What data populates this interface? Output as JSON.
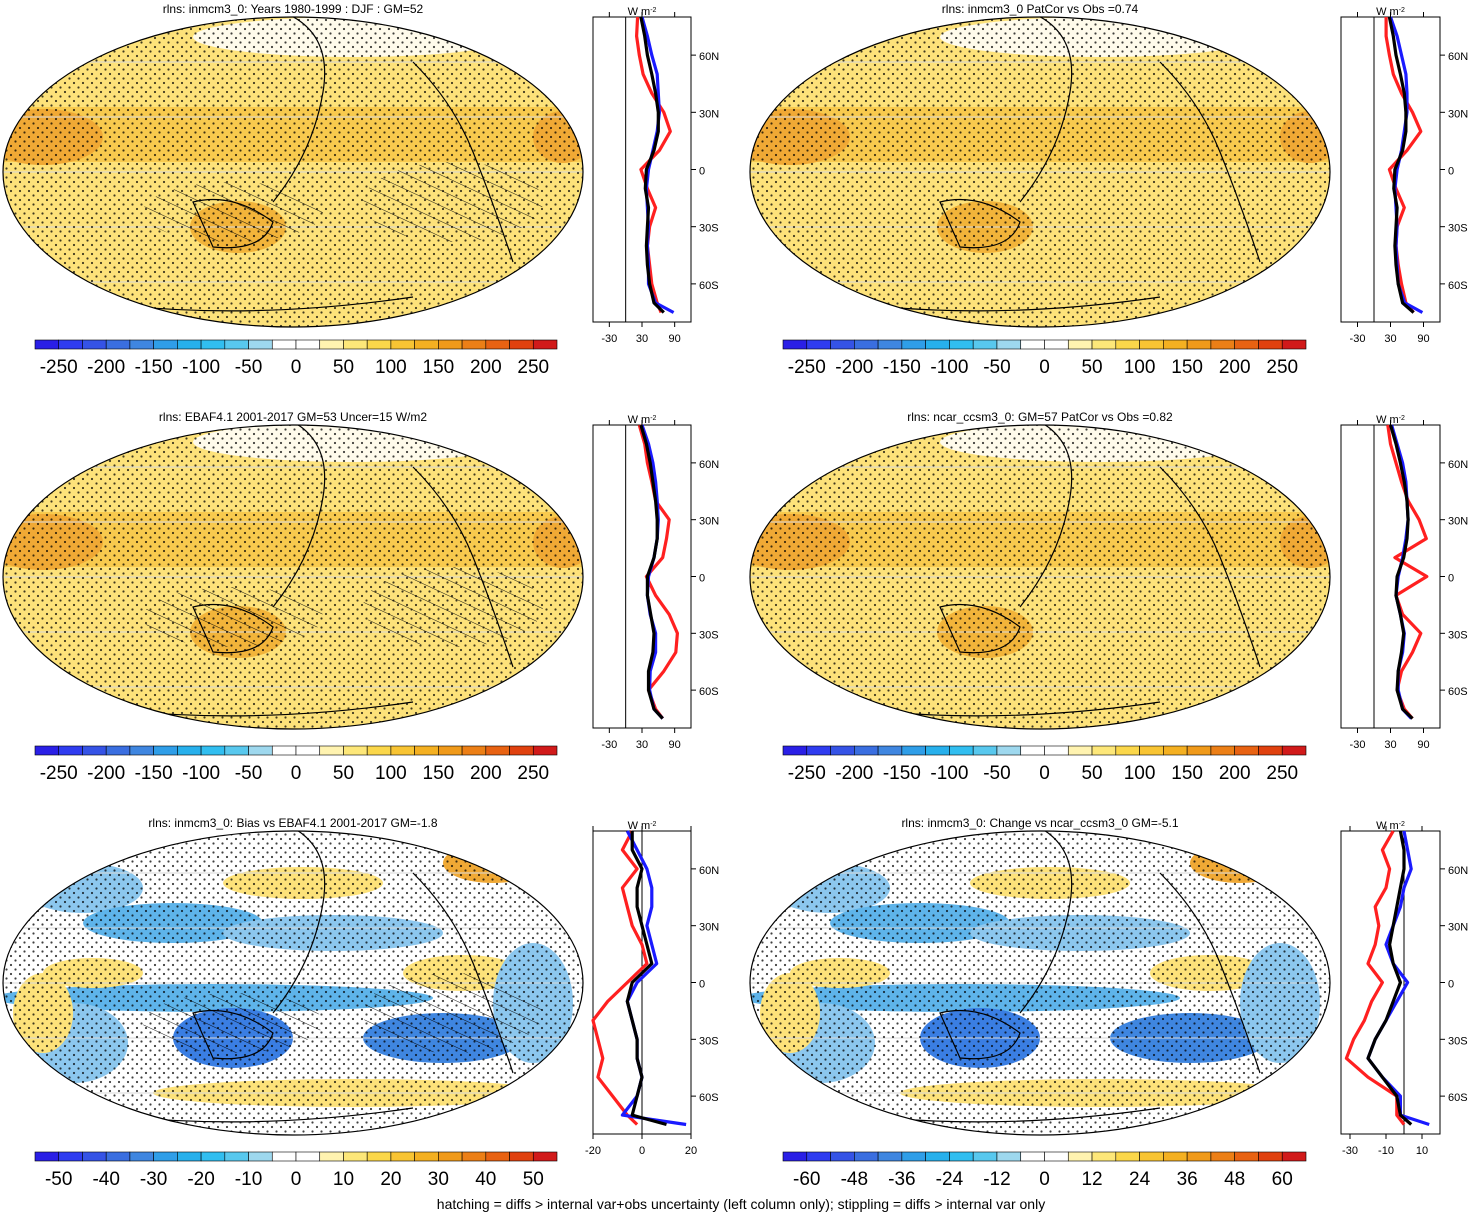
{
  "footer_note": "hatching = diffs > internal var+obs uncertainty (left column only); stippling = diffs > internal var only",
  "palette": {
    "blue_end": "#1a1aff",
    "mid_blue": "#2aa4ee",
    "white": "#ffffff",
    "yellow": "#fbd74a",
    "orange": "#f09a1a",
    "red_end": "#d11a1a",
    "line_red": "#ff2020",
    "line_blue": "#1a1aff",
    "line_black": "#000000"
  },
  "chart_data": [
    {
      "id": "p1",
      "type": "heatmap",
      "title": "rlns: inmcm3_0: Years 1980-1999 : DJF : GM=52",
      "colorbar_ticks": [
        "-250",
        "-200",
        "-150",
        "-100",
        "-50",
        "0",
        "50",
        "100",
        "150",
        "200",
        "250"
      ],
      "profile": {
        "unit": "W m",
        "unit_exp": "-2",
        "x_ticks": [
          "-30",
          "30",
          "90"
        ],
        "x_range": [
          -60,
          120
        ],
        "lat_labels": [
          "60N",
          "30N",
          "0",
          "30S",
          "60S"
        ],
        "series": [
          {
            "color": "red",
            "lat": [
              80,
              70,
              60,
              50,
              40,
              30,
              20,
              10,
              0,
              -10,
              -20,
              -30,
              -40,
              -50,
              -60,
              -70,
              -75
            ],
            "values": [
              22,
              20,
              25,
              32,
              48,
              70,
              82,
              62,
              28,
              40,
              55,
              44,
              40,
              44,
              48,
              58,
              65
            ]
          },
          {
            "color": "blue",
            "lat": [
              80,
              70,
              60,
              50,
              40,
              30,
              20,
              10,
              0,
              -10,
              -20,
              -30,
              -40,
              -50,
              -60,
              -70,
              -75
            ],
            "values": [
              30,
              40,
              48,
              58,
              60,
              62,
              58,
              50,
              42,
              38,
              40,
              42,
              40,
              42,
              42,
              55,
              88
            ]
          },
          {
            "color": "black",
            "lat": [
              80,
              70,
              60,
              50,
              40,
              30,
              20,
              10,
              0,
              -10,
              -20,
              -30,
              -40,
              -50,
              -60,
              -70,
              -75
            ],
            "values": [
              28,
              35,
              40,
              48,
              55,
              60,
              60,
              52,
              38,
              36,
              42,
              40,
              38,
              40,
              44,
              52,
              70
            ]
          }
        ]
      }
    },
    {
      "id": "p2",
      "type": "heatmap",
      "title": "rlns: inmcm3_0 PatCor vs Obs =0.74",
      "colorbar_ticks": [
        "-250",
        "-200",
        "-150",
        "-100",
        "-50",
        "0",
        "50",
        "100",
        "150",
        "200",
        "250"
      ],
      "profile": {
        "unit": "W m",
        "unit_exp": "-2",
        "x_ticks": [
          "-30",
          "30",
          "90"
        ],
        "x_range": [
          -60,
          120
        ],
        "lat_labels": [
          "60N",
          "30N",
          "0",
          "30S",
          "60S"
        ],
        "series": [
          {
            "color": "red",
            "lat": [
              80,
              70,
              60,
              50,
              40,
              30,
              20,
              10,
              0,
              -10,
              -20,
              -30,
              -40,
              -50,
              -60,
              -70,
              -75
            ],
            "values": [
              22,
              22,
              28,
              35,
              50,
              70,
              85,
              60,
              28,
              40,
              55,
              42,
              40,
              44,
              50,
              58,
              72
            ]
          },
          {
            "color": "blue",
            "lat": [
              80,
              70,
              60,
              50,
              40,
              30,
              20,
              10,
              0,
              -10,
              -20,
              -30,
              -40,
              -50,
              -60,
              -70,
              -75
            ],
            "values": [
              30,
              42,
              50,
              58,
              60,
              60,
              55,
              50,
              42,
              38,
              40,
              42,
              40,
              42,
              44,
              56,
              88
            ]
          },
          {
            "color": "black",
            "lat": [
              80,
              70,
              60,
              50,
              40,
              30,
              20,
              10,
              0,
              -10,
              -20,
              -30,
              -40,
              -50,
              -60,
              -70,
              -75
            ],
            "values": [
              28,
              35,
              40,
              48,
              55,
              58,
              58,
              52,
              38,
              36,
              42,
              40,
              38,
              40,
              44,
              52,
              72
            ]
          }
        ]
      }
    },
    {
      "id": "p3",
      "type": "heatmap",
      "title": "rlns: EBAF4.1 2001-2017 GM=53 Uncer=15 W/m2",
      "colorbar_ticks": [
        "-250",
        "-200",
        "-150",
        "-100",
        "-50",
        "0",
        "50",
        "100",
        "150",
        "200",
        "250"
      ],
      "profile": {
        "unit": "W m",
        "unit_exp": "-2",
        "x_ticks": [
          "-30",
          "30",
          "90"
        ],
        "x_range": [
          -60,
          120
        ],
        "lat_labels": [
          "60N",
          "30N",
          "0",
          "30S",
          "60S"
        ],
        "series": [
          {
            "color": "red",
            "lat": [
              80,
              70,
              60,
              50,
              40,
              30,
              20,
              10,
              0,
              -10,
              -20,
              -30,
              -40,
              -50,
              -60,
              -70,
              -75
            ],
            "values": [
              25,
              35,
              40,
              48,
              55,
              80,
              75,
              68,
              38,
              55,
              80,
              95,
              92,
              70,
              42,
              55,
              68
            ]
          },
          {
            "color": "blue",
            "lat": [
              80,
              70,
              60,
              50,
              40,
              30,
              20,
              10,
              0,
              -10,
              -20,
              -30,
              -40,
              -50,
              -60,
              -70,
              -75
            ],
            "values": [
              30,
              42,
              50,
              55,
              58,
              60,
              58,
              52,
              42,
              40,
              45,
              55,
              55,
              45,
              44,
              52,
              68
            ]
          },
          {
            "color": "black",
            "lat": [
              80,
              70,
              60,
              50,
              40,
              30,
              20,
              10,
              0,
              -10,
              -20,
              -30,
              -40,
              -50,
              -60,
              -70,
              -75
            ],
            "values": [
              28,
              38,
              45,
              50,
              55,
              58,
              58,
              52,
              40,
              40,
              46,
              52,
              50,
              42,
              42,
              52,
              68
            ]
          }
        ]
      }
    },
    {
      "id": "p4",
      "type": "heatmap",
      "title": "rlns: ncar_ccsm3_0: GM=57 PatCor vs Obs =0.82",
      "colorbar_ticks": [
        "-250",
        "-200",
        "-150",
        "-100",
        "-50",
        "0",
        "50",
        "100",
        "150",
        "200",
        "250"
      ],
      "profile": {
        "unit": "W m",
        "unit_exp": "-2",
        "x_ticks": [
          "-30",
          "30",
          "90"
        ],
        "x_range": [
          -60,
          120
        ],
        "lat_labels": [
          "60N",
          "30N",
          "0",
          "30S",
          "60S"
        ],
        "series": [
          {
            "color": "red",
            "lat": [
              80,
              70,
              60,
              50,
              40,
              30,
              20,
              10,
              0,
              -10,
              -20,
              -30,
              -40,
              -50,
              -60,
              -70,
              -75
            ],
            "values": [
              25,
              30,
              40,
              50,
              62,
              82,
              95,
              38,
              96,
              40,
              52,
              85,
              70,
              50,
              42,
              55,
              70
            ]
          },
          {
            "color": "blue",
            "lat": [
              80,
              70,
              60,
              50,
              40,
              30,
              20,
              10,
              0,
              -10,
              -20,
              -30,
              -40,
              -50,
              -60,
              -70,
              -75
            ],
            "values": [
              32,
              42,
              52,
              58,
              60,
              62,
              58,
              52,
              44,
              40,
              48,
              55,
              52,
              44,
              44,
              52,
              68
            ]
          },
          {
            "color": "black",
            "lat": [
              80,
              70,
              60,
              50,
              40,
              30,
              20,
              10,
              0,
              -10,
              -20,
              -30,
              -40,
              -50,
              -60,
              -70,
              -75
            ],
            "values": [
              30,
              40,
              48,
              55,
              60,
              62,
              60,
              54,
              42,
              40,
              48,
              54,
              50,
              44,
              42,
              52,
              70
            ]
          }
        ]
      }
    },
    {
      "id": "p5",
      "type": "heatmap",
      "title": "rlns: inmcm3_0: Bias vs EBAF4.1 2001-2017 GM=-1.8",
      "colorbar_ticks": [
        "-50",
        "-40",
        "-30",
        "-20",
        "-10",
        "0",
        "10",
        "20",
        "30",
        "40",
        "50"
      ],
      "profile": {
        "unit": "W m",
        "unit_exp": "-2",
        "x_ticks": [
          "-20",
          "0",
          "20"
        ],
        "x_range": [
          -20,
          20
        ],
        "lat_labels": [
          "60N",
          "30N",
          "0",
          "30S",
          "60S"
        ],
        "series": [
          {
            "color": "red",
            "lat": [
              80,
              70,
              60,
              50,
              40,
              30,
              20,
              10,
              0,
              -10,
              -20,
              -30,
              -40,
              -50,
              -60,
              -70,
              -75
            ],
            "values": [
              -4,
              -8,
              -2,
              -8,
              -6,
              -4,
              0,
              2,
              -6,
              -14,
              -20,
              -18,
              -16,
              -18,
              -12,
              -6,
              -2
            ]
          },
          {
            "color": "blue",
            "lat": [
              80,
              70,
              60,
              50,
              40,
              30,
              20,
              10,
              0,
              -10,
              -20,
              -30,
              -40,
              -50,
              -60,
              -70,
              -75
            ],
            "values": [
              -6,
              -2,
              2,
              4,
              4,
              2,
              4,
              6,
              -2,
              -6,
              -4,
              -2,
              -2,
              0,
              -2,
              -8,
              18
            ]
          },
          {
            "color": "black",
            "lat": [
              80,
              70,
              60,
              50,
              40,
              30,
              20,
              10,
              0,
              -10,
              -20,
              -30,
              -40,
              -50,
              -60,
              -70,
              -75
            ],
            "values": [
              -4,
              -4,
              0,
              -2,
              -2,
              0,
              2,
              4,
              -4,
              -6,
              -4,
              -2,
              -2,
              0,
              -2,
              -4,
              10
            ]
          }
        ]
      }
    },
    {
      "id": "p6",
      "type": "heatmap",
      "title": "rlns: inmcm3_0: Change vs ncar_ccsm3_0 GM=-5.1",
      "colorbar_ticks": [
        "-60",
        "-48",
        "-36",
        "-24",
        "-12",
        "0",
        "12",
        "24",
        "36",
        "48",
        "60"
      ],
      "profile": {
        "unit": "W m",
        "unit_exp": "-2",
        "x_ticks": [
          "-30",
          "-10",
          "10"
        ],
        "x_range": [
          -35,
          20
        ],
        "lat_labels": [
          "60N",
          "30N",
          "0",
          "30S",
          "60S"
        ],
        "series": [
          {
            "color": "red",
            "lat": [
              80,
              70,
              60,
              50,
              40,
              30,
              20,
              10,
              0,
              -10,
              -20,
              -30,
              -40,
              -50,
              -60,
              -70,
              -75
            ],
            "values": [
              -6,
              -12,
              -8,
              -10,
              -16,
              -14,
              -16,
              -20,
              -12,
              -18,
              -22,
              -28,
              -32,
              -20,
              -4,
              -4,
              0
            ]
          },
          {
            "color": "blue",
            "lat": [
              80,
              70,
              60,
              50,
              40,
              30,
              20,
              10,
              0,
              -10,
              -20,
              -30,
              -40,
              -50,
              -60,
              -70,
              -75
            ],
            "values": [
              0,
              2,
              4,
              0,
              -2,
              -6,
              -10,
              -6,
              2,
              -4,
              -10,
              -16,
              -20,
              -12,
              -2,
              -2,
              14
            ]
          },
          {
            "color": "black",
            "lat": [
              80,
              70,
              60,
              50,
              40,
              30,
              20,
              10,
              0,
              -10,
              -20,
              -30,
              -40,
              -50,
              -60,
              -70,
              -75
            ],
            "values": [
              -2,
              0,
              0,
              -2,
              -4,
              -6,
              -8,
              -6,
              -2,
              -6,
              -10,
              -16,
              -20,
              -12,
              -4,
              -2,
              4
            ]
          }
        ]
      }
    }
  ]
}
